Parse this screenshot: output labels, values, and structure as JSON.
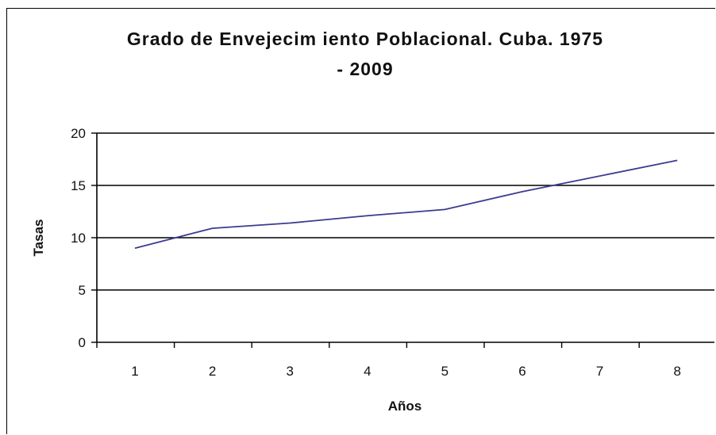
{
  "chart_data": {
    "type": "line",
    "title": "Grado de Envejecim iento Poblacional. Cuba. 1975\n- 2009",
    "xlabel": "Años",
    "ylabel": "Tasas",
    "categories": [
      "1",
      "2",
      "3",
      "4",
      "5",
      "6",
      "7",
      "8"
    ],
    "series": [
      {
        "values": [
          9.0,
          10.9,
          11.4,
          12.1,
          12.7,
          14.4,
          15.9,
          17.4
        ]
      }
    ],
    "ylim": [
      0,
      20
    ],
    "yticks": [
      "0",
      "5",
      "10",
      "15",
      "20"
    ],
    "grid": "horizontal",
    "legend": "none",
    "line_color": "#3b3b8f"
  }
}
